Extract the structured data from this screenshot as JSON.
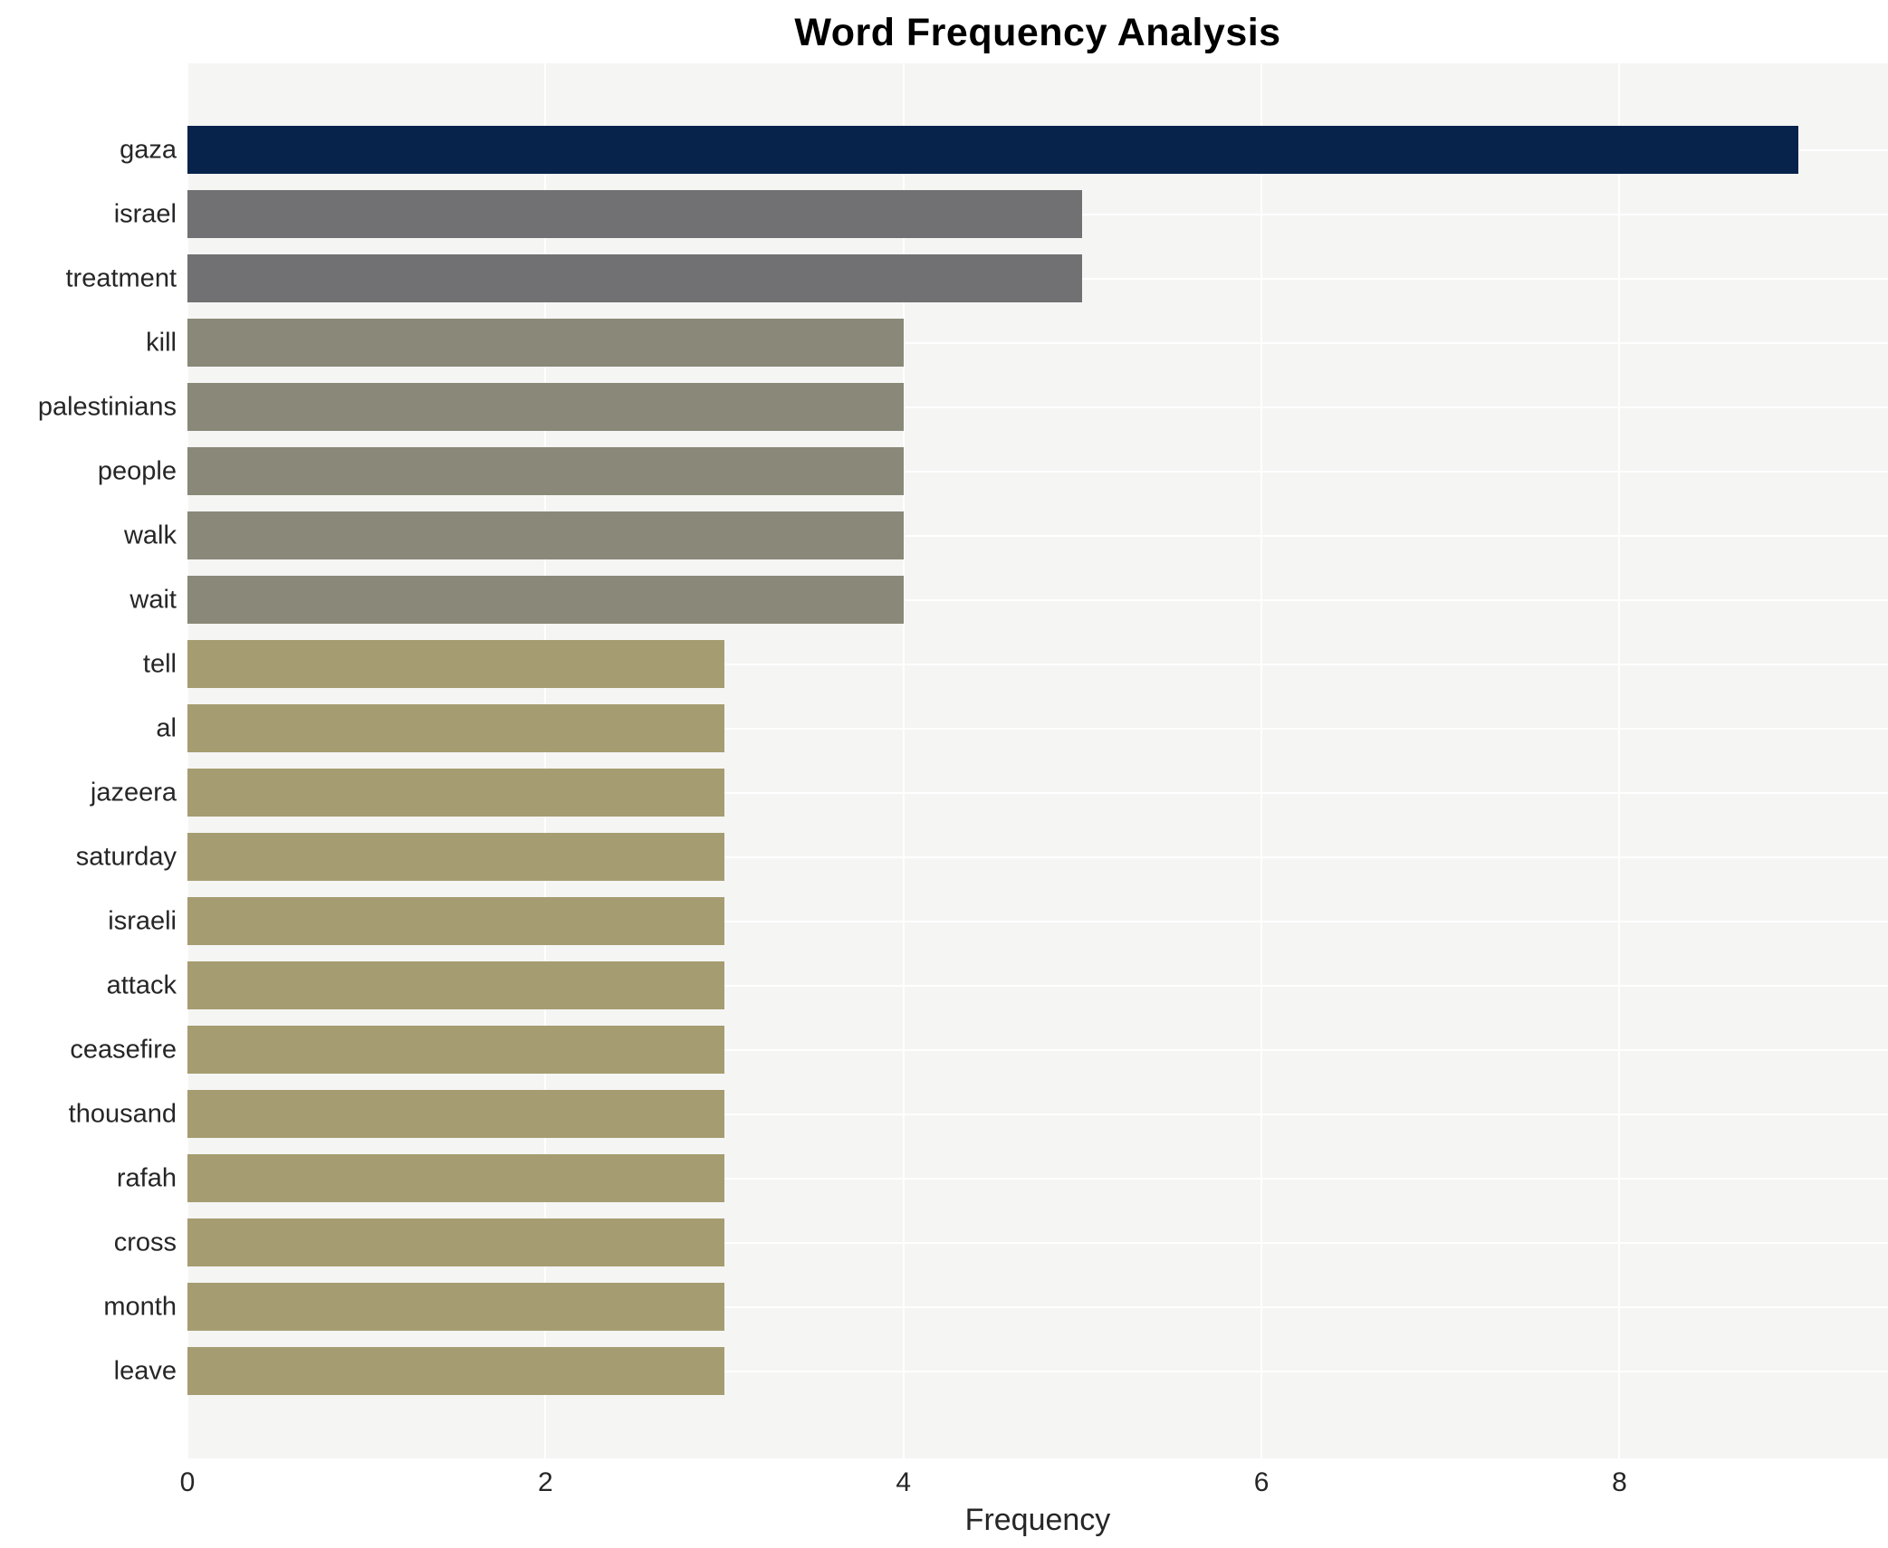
{
  "title": "Word Frequency Analysis",
  "xlabel": "Frequency",
  "chart_data": {
    "type": "bar",
    "orientation": "horizontal",
    "title": "Word Frequency Analysis",
    "xlabel": "Frequency",
    "ylabel": "",
    "categories": [
      "gaza",
      "israel",
      "treatment",
      "kill",
      "palestinians",
      "people",
      "walk",
      "wait",
      "tell",
      "al",
      "jazeera",
      "saturday",
      "israeli",
      "attack",
      "ceasefire",
      "thousand",
      "rafah",
      "cross",
      "month",
      "leave"
    ],
    "values": [
      9,
      5,
      5,
      4,
      4,
      4,
      4,
      4,
      3,
      3,
      3,
      3,
      3,
      3,
      3,
      3,
      3,
      3,
      3,
      3
    ],
    "bar_colors": [
      "#07234b",
      "#717173",
      "#717173",
      "#8a8878",
      "#8a8878",
      "#8a8878",
      "#8a8878",
      "#8a8878",
      "#a59d71",
      "#a59d71",
      "#a59d71",
      "#a59d71",
      "#a59d71",
      "#a59d71",
      "#a59d71",
      "#a59d71",
      "#a59d71",
      "#a59d71",
      "#a59d71",
      "#a59d71"
    ],
    "x_ticks": [
      0,
      2,
      4,
      6,
      8
    ],
    "xlim": [
      0,
      9.5
    ],
    "grid": true,
    "legend": "none",
    "plot_background": "#f5f5f4",
    "gridline_color": "#ffffff",
    "colors": {
      "navy": "#07234b",
      "gray": "#717173",
      "olive_gray": "#8a8878",
      "khaki": "#a59d71"
    }
  }
}
